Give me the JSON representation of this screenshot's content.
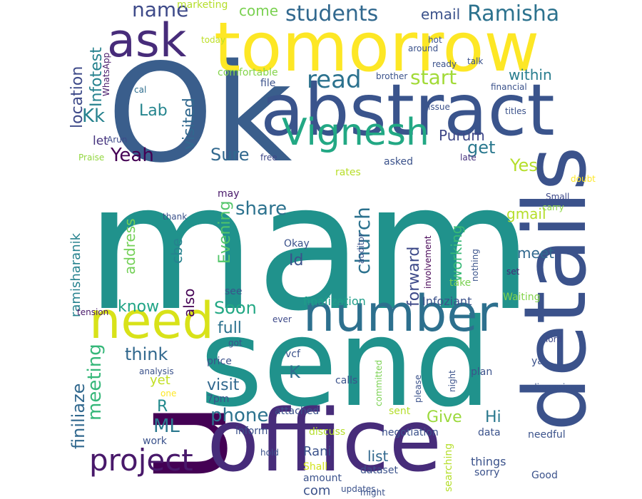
{
  "words": [
    {
      "text": "mam",
      "color": "#20928c"
    },
    {
      "text": "send",
      "color": "#20928c"
    },
    {
      "text": "Ok",
      "color": "#3a5e8c"
    },
    {
      "text": "u",
      "color": "#440154"
    },
    {
      "text": "office",
      "color": "#472c7a"
    },
    {
      "text": "details",
      "color": "#3b528b"
    },
    {
      "text": "tomorrow",
      "color": "#fde725"
    },
    {
      "text": "abstract",
      "color": "#3a548c"
    },
    {
      "text": "ask",
      "color": "#472c7a"
    },
    {
      "text": "need",
      "color": "#d8e219"
    },
    {
      "text": "number",
      "color": "#2d708e"
    },
    {
      "text": "Vignesh",
      "color": "#22a884"
    },
    {
      "text": "project",
      "color": "#48186a"
    },
    {
      "text": "students",
      "color": "#31688e"
    },
    {
      "text": "Ramisha",
      "color": "#2c728e"
    },
    {
      "text": "name",
      "color": "#3e4a89"
    },
    {
      "text": "email",
      "color": "#3b528b"
    },
    {
      "text": "come",
      "color": "#7ad151"
    },
    {
      "text": "marketing",
      "color": "#b5de2b"
    },
    {
      "text": "read",
      "color": "#2c728e"
    },
    {
      "text": "start",
      "color": "#a2da37"
    },
    {
      "text": "within",
      "color": "#287d8e"
    },
    {
      "text": "location",
      "color": "#3e4a89"
    },
    {
      "text": "Infotest",
      "color": "#26828e"
    },
    {
      "text": "Kk",
      "color": "#26828e"
    },
    {
      "text": "Lab",
      "color": "#25858e"
    },
    {
      "text": "visited",
      "color": "#31688e"
    },
    {
      "text": "Yeah",
      "color": "#440154"
    },
    {
      "text": "let",
      "color": "#46337e"
    },
    {
      "text": "Purum",
      "color": "#3f4788"
    },
    {
      "text": "get",
      "color": "#2a788e"
    },
    {
      "text": "Sure",
      "color": "#31688e"
    },
    {
      "text": "Yes",
      "color": "#b5de2b"
    },
    {
      "text": "share",
      "color": "#2c728e"
    },
    {
      "text": "church",
      "color": "#2c728e"
    },
    {
      "text": "Evening",
      "color": "#52c569"
    },
    {
      "text": "address",
      "color": "#73d056"
    },
    {
      "text": "gmail",
      "color": "#b5de2b"
    },
    {
      "text": "cbe",
      "color": "#26828e"
    },
    {
      "text": "Id",
      "color": "#3b528b"
    },
    {
      "text": "forward",
      "color": "#3e4a89"
    },
    {
      "text": "working",
      "color": "#38b977"
    },
    {
      "text": "meet",
      "color": "#31688e"
    },
    {
      "text": "know",
      "color": "#20a486"
    },
    {
      "text": "ramisharanik",
      "color": "#26828e"
    },
    {
      "text": "also",
      "color": "#440154"
    },
    {
      "text": "Soon",
      "color": "#22a884"
    },
    {
      "text": "full",
      "color": "#2c728e"
    },
    {
      "text": "think",
      "color": "#31688e"
    },
    {
      "text": "finiliaze",
      "color": "#31688e"
    },
    {
      "text": "meeting",
      "color": "#35b779"
    },
    {
      "text": "yet",
      "color": "#c2df23"
    },
    {
      "text": "R",
      "color": "#238a8d"
    },
    {
      "text": "ML",
      "color": "#2a788e"
    },
    {
      "text": "visit",
      "color": "#31688e"
    },
    {
      "text": "K",
      "color": "#2e6f8e"
    },
    {
      "text": "phone",
      "color": "#2c728e"
    },
    {
      "text": "Give",
      "color": "#9bd93c"
    },
    {
      "text": "Hi",
      "color": "#2a788e"
    },
    {
      "text": "Rani",
      "color": "#3b528b"
    },
    {
      "text": "list",
      "color": "#31688e"
    },
    {
      "text": "com",
      "color": "#3b528b"
    },
    {
      "text": "Infoziant",
      "color": "#3b528b"
    },
    {
      "text": "finalization",
      "color": "#1f9e89"
    },
    {
      "text": "Okay",
      "color": "#3b528b"
    },
    {
      "text": "comfortable",
      "color": "#84d44b"
    },
    {
      "text": "file",
      "color": "#3b528b"
    },
    {
      "text": "today",
      "color": "#bddf26"
    },
    {
      "text": "WhatsApp",
      "color": "#48186a"
    },
    {
      "text": "cal",
      "color": "#2e6e8e"
    },
    {
      "text": "Arun",
      "color": "#3e4989"
    },
    {
      "text": "Praise",
      "color": "#93d741"
    },
    {
      "text": "free",
      "color": "#3f4788"
    },
    {
      "text": "asked",
      "color": "#3b528b"
    },
    {
      "text": "rates",
      "color": "#b8de29"
    },
    {
      "text": "late",
      "color": "#46327e"
    },
    {
      "text": "doubt",
      "color": "#fde725"
    },
    {
      "text": "Small",
      "color": "#3e4989"
    },
    {
      "text": "carry",
      "color": "#8fd744"
    },
    {
      "text": "may",
      "color": "#48186a"
    },
    {
      "text": "thank",
      "color": "#3b528b"
    },
    {
      "text": "involvement",
      "color": "#440154"
    },
    {
      "text": "nothing",
      "color": "#3a538b"
    },
    {
      "text": "auditor",
      "color": "#3b528b"
    },
    {
      "text": "set",
      "color": "#482677"
    },
    {
      "text": "take",
      "color": "#7ad151"
    },
    {
      "text": "Waiting",
      "color": "#84d44b"
    },
    {
      "text": "see",
      "color": "#3b528b"
    },
    {
      "text": "tension",
      "color": "#48186a"
    },
    {
      "text": "ever",
      "color": "#3e4a89"
    },
    {
      "text": "got",
      "color": "#3b528b"
    },
    {
      "text": "lord",
      "color": "#3e4989"
    },
    {
      "text": "vcf",
      "color": "#3b528b"
    },
    {
      "text": "price",
      "color": "#3b528b"
    },
    {
      "text": "analysis",
      "color": "#3b528b"
    },
    {
      "text": "one",
      "color": "#fde725"
    },
    {
      "text": "7pm",
      "color": "#3b528b"
    },
    {
      "text": "attached",
      "color": "#3b528b"
    },
    {
      "text": "calls",
      "color": "#3b528b"
    },
    {
      "text": "committed",
      "color": "#7ad151"
    },
    {
      "text": "please",
      "color": "#3b528b"
    },
    {
      "text": "night",
      "color": "#3b528b"
    },
    {
      "text": "plan",
      "color": "#3b528b"
    },
    {
      "text": "ya",
      "color": "#3b528b"
    },
    {
      "text": "discussion",
      "color": "#3b528b"
    },
    {
      "text": "inform",
      "color": "#3b528b"
    },
    {
      "text": "discuss",
      "color": "#b5de2b"
    },
    {
      "text": "negotiation",
      "color": "#3b528b"
    },
    {
      "text": "sent",
      "color": "#b5de2b"
    },
    {
      "text": "data",
      "color": "#3b528b"
    },
    {
      "text": "needful",
      "color": "#3b528b"
    },
    {
      "text": "work",
      "color": "#3b528b"
    },
    {
      "text": "hold",
      "color": "#3b528b"
    },
    {
      "text": "Shall",
      "color": "#d2e21b"
    },
    {
      "text": "amount",
      "color": "#3b528b"
    },
    {
      "text": "updates",
      "color": "#3b528b"
    },
    {
      "text": "dataset",
      "color": "#3b528b"
    },
    {
      "text": "searching",
      "color": "#b5de2b"
    },
    {
      "text": "things",
      "color": "#3b528b"
    },
    {
      "text": "sorry",
      "color": "#3b528b"
    },
    {
      "text": "Good",
      "color": "#3b528b"
    },
    {
      "text": "might",
      "color": "#3b528b"
    },
    {
      "text": "hot",
      "color": "#3b528b"
    },
    {
      "text": "around",
      "color": "#3b528b"
    },
    {
      "text": "talk",
      "color": "#3b528b"
    },
    {
      "text": "ready",
      "color": "#3b528b"
    },
    {
      "text": "brother",
      "color": "#3b528b"
    },
    {
      "text": "financial",
      "color": "#3b528b"
    },
    {
      "text": "issue",
      "color": "#3b528b"
    },
    {
      "text": "titles",
      "color": "#3b528b"
    }
  ]
}
